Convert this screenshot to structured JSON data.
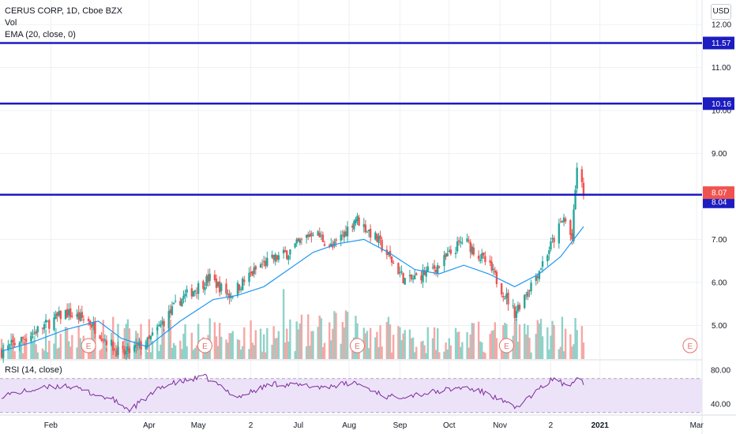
{
  "header": {
    "symbol_line": "CERUS CORP, 1D, Cboe BZX",
    "volume_label": "Vol",
    "ema_label": "EMA (20, close, 0)",
    "currency_button": "USD"
  },
  "rsi_panel": {
    "label": "RSI (14, close)"
  },
  "colors": {
    "up": "#26a69a",
    "down": "#ef5350",
    "up_volume": "#8fd2c9",
    "down_volume": "#f6a7a5",
    "ema": "#2196f3",
    "level_line": "#1c1cc0",
    "rsi_line": "#7e2b9c",
    "rsi_band": "#ece3f8",
    "grid": "#eef0f3",
    "earnings_marker": "#e5716d"
  },
  "chart_data": [
    {
      "type": "candlestick",
      "title": "CERUS CORP, 1D, Cboe BZX",
      "x_tick_labels": [
        "Feb",
        "Apr",
        "May",
        "2",
        "Jul",
        "Aug",
        "Sep",
        "Oct",
        "Nov",
        "2",
        "2021",
        "Mar"
      ],
      "y_tick_labels": [
        "12.00",
        "11.00",
        "10.00",
        "9.00",
        "7.00",
        "6.00",
        "5.00"
      ],
      "ylim": [
        4.3,
        12.35
      ],
      "grid": true,
      "horizontal_levels": [
        {
          "label": "11.57",
          "value": 11.57
        },
        {
          "label": "10.16",
          "value": 10.16
        },
        {
          "label": "8.04",
          "value": 8.04
        }
      ],
      "last_price_label": {
        "label": "8.07",
        "value": 8.07
      },
      "earnings_markers": {
        "glyph": "E",
        "dates": [
          "2020-02-24",
          "2020-05-05",
          "2020-08-06",
          "2020-11-05",
          "2021-02-25"
        ]
      },
      "ema_series": {
        "name": "EMA (20, close, 0)",
        "points": [
          [
            "2020-01-02",
            4.4
          ],
          [
            "2020-01-20",
            4.6
          ],
          [
            "2020-02-10",
            4.9
          ],
          [
            "2020-03-01",
            5.1
          ],
          [
            "2020-03-15",
            4.7
          ],
          [
            "2020-03-31",
            4.5
          ],
          [
            "2020-04-20",
            5.1
          ],
          [
            "2020-05-10",
            5.6
          ],
          [
            "2020-05-25",
            5.7
          ],
          [
            "2020-06-10",
            5.9
          ],
          [
            "2020-06-25",
            6.3
          ],
          [
            "2020-07-10",
            6.7
          ],
          [
            "2020-07-25",
            6.9
          ],
          [
            "2020-08-10",
            7.0
          ],
          [
            "2020-08-25",
            6.7
          ],
          [
            "2020-09-10",
            6.3
          ],
          [
            "2020-09-25",
            6.2
          ],
          [
            "2020-10-10",
            6.4
          ],
          [
            "2020-10-25",
            6.2
          ],
          [
            "2020-11-10",
            5.9
          ],
          [
            "2020-11-25",
            6.2
          ],
          [
            "2020-12-08",
            6.6
          ],
          [
            "2020-12-22",
            7.3
          ]
        ]
      },
      "price_anchors": [
        [
          "2020-01-02",
          4.4
        ],
        [
          "2020-01-20",
          4.8
        ],
        [
          "2020-02-10",
          5.3
        ],
        [
          "2020-02-24",
          5.1
        ],
        [
          "2020-03-15",
          4.3
        ],
        [
          "2020-03-31",
          4.6
        ],
        [
          "2020-04-20",
          5.6
        ],
        [
          "2020-05-08",
          6.1
        ],
        [
          "2020-05-20",
          5.7
        ],
        [
          "2020-06-08",
          6.4
        ],
        [
          "2020-06-25",
          6.7
        ],
        [
          "2020-07-10",
          7.2
        ],
        [
          "2020-07-22",
          6.8
        ],
        [
          "2020-08-05",
          7.5
        ],
        [
          "2020-08-18",
          7.0
        ],
        [
          "2020-09-05",
          6.0
        ],
        [
          "2020-09-25",
          6.4
        ],
        [
          "2020-10-10",
          7.0
        ],
        [
          "2020-10-25",
          6.4
        ],
        [
          "2020-11-10",
          5.3
        ],
        [
          "2020-11-25",
          6.3
        ],
        [
          "2020-12-10",
          7.5
        ],
        [
          "2020-12-15",
          7.0
        ],
        [
          "2020-12-18",
          8.7
        ],
        [
          "2020-12-22",
          8.07
        ]
      ],
      "volume_profile": [
        [
          "2020-01-02",
          0.3
        ],
        [
          "2020-03-01",
          0.45
        ],
        [
          "2020-04-20",
          0.5
        ],
        [
          "2020-06-10",
          0.45
        ],
        [
          "2020-08-05",
          0.6
        ],
        [
          "2020-09-15",
          0.4
        ],
        [
          "2020-11-01",
          0.45
        ],
        [
          "2020-12-10",
          0.55
        ],
        [
          "2020-12-22",
          0.5
        ]
      ]
    },
    {
      "type": "line",
      "title": "RSI (14, close)",
      "y_tick_labels": [
        "80.00",
        "40.00"
      ],
      "ylim": [
        30,
        85
      ],
      "band": [
        30,
        70
      ],
      "anchors": [
        [
          "2020-01-02",
          50
        ],
        [
          "2020-01-25",
          58
        ],
        [
          "2020-02-10",
          62
        ],
        [
          "2020-03-10",
          45
        ],
        [
          "2020-03-20",
          33
        ],
        [
          "2020-04-10",
          62
        ],
        [
          "2020-05-05",
          72
        ],
        [
          "2020-05-25",
          48
        ],
        [
          "2020-06-15",
          64
        ],
        [
          "2020-07-15",
          60
        ],
        [
          "2020-08-05",
          65
        ],
        [
          "2020-08-25",
          48
        ],
        [
          "2020-09-15",
          52
        ],
        [
          "2020-10-10",
          60
        ],
        [
          "2020-10-25",
          52
        ],
        [
          "2020-11-10",
          35
        ],
        [
          "2020-12-05",
          72
        ],
        [
          "2020-12-12",
          58
        ],
        [
          "2020-12-18",
          74
        ],
        [
          "2020-12-22",
          66
        ]
      ]
    }
  ]
}
